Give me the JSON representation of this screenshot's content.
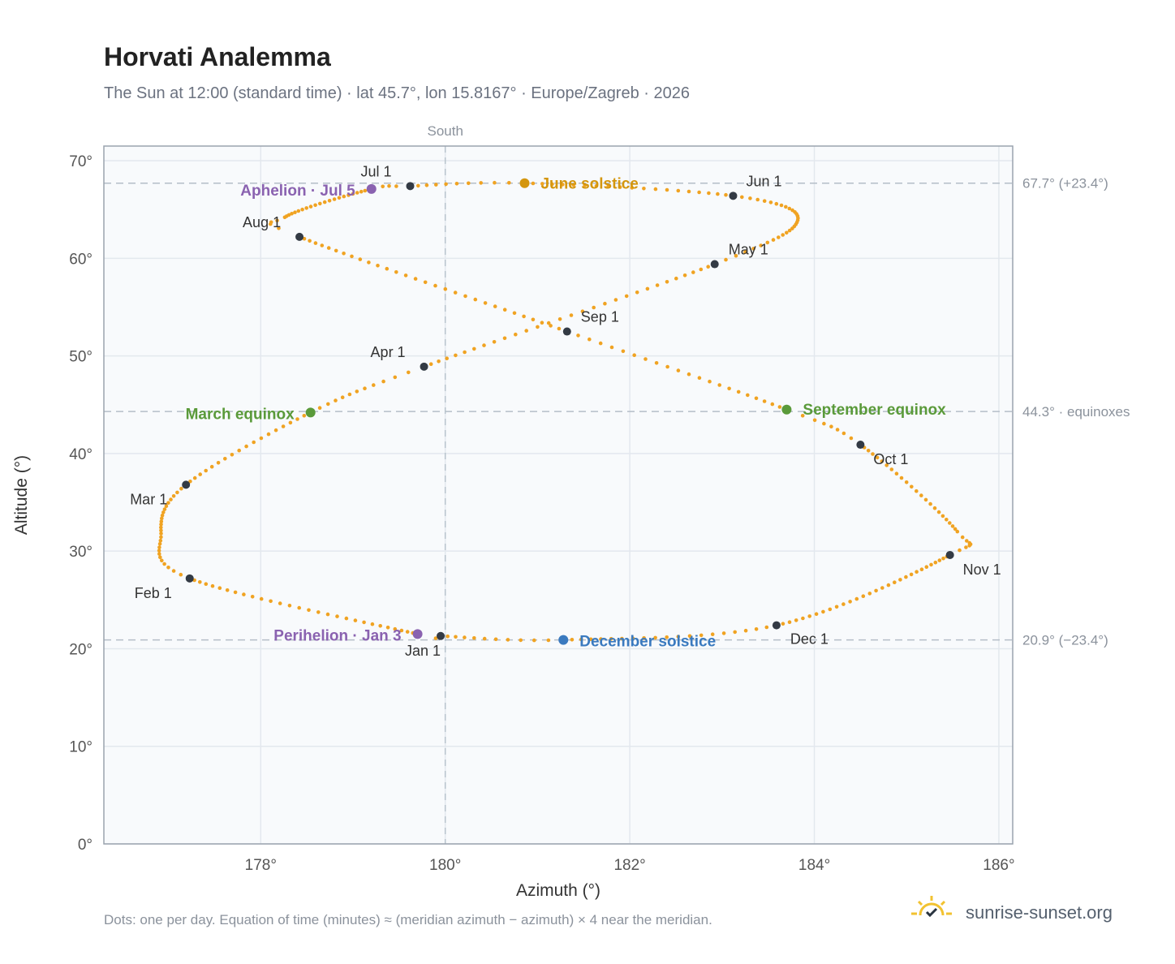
{
  "title": "Horvati Analemma",
  "subtitle": "The Sun at 12:00 (standard time) · lat 45.7°, lon 15.8167° · Europe/Zagreb · 2026",
  "footnote": "Dots: one per day. Equation of time (minutes) ≈ (meridian azimuth − azimuth) × 4 near the meridian.",
  "brand": {
    "text": "sunrise-sunset.org",
    "icon": "sun-logo-icon"
  },
  "colors": {
    "curve": "#f0a322",
    "month_marker": "#333a44",
    "solstice_june": "#d4960e",
    "solstice_december": "#3a7abf",
    "equinox": "#5a9a3a",
    "apsis": "#8a62b0",
    "grid": "#e3e8ee",
    "plot_bg": "#f8fafc",
    "reference_line": "#b5bec8"
  },
  "chart_data": {
    "type": "scatter",
    "title": "Horvati Analemma",
    "xlabel": "Azimuth (°)",
    "ylabel": "Altitude (°)",
    "xlim": [
      176.3,
      186.15
    ],
    "ylim": [
      0,
      71.5
    ],
    "x_ticks": [
      178,
      180,
      182,
      184,
      186
    ],
    "y_ticks": [
      0,
      10,
      20,
      30,
      40,
      50,
      60,
      70
    ],
    "x_tick_labels": [
      "178°",
      "180°",
      "182°",
      "184°",
      "186°"
    ],
    "y_tick_labels": [
      "0°",
      "10°",
      "20°",
      "30°",
      "40°",
      "50°",
      "60°",
      "70°"
    ],
    "grid": true,
    "south_line": {
      "x": 180,
      "label": "South"
    },
    "reference_lines": [
      {
        "y": 67.7,
        "label": "67.7° (+23.4°)"
      },
      {
        "y": 44.3,
        "label": "44.3° · equinoxes"
      },
      {
        "y": 20.9,
        "label": "20.9° (−23.4°)"
      }
    ],
    "month_points": [
      {
        "label": "Jan 1",
        "azimuth": 179.95,
        "altitude": 21.3
      },
      {
        "label": "Feb 1",
        "azimuth": 177.23,
        "altitude": 27.2
      },
      {
        "label": "Mar 1",
        "azimuth": 177.19,
        "altitude": 36.8
      },
      {
        "label": "Apr 1",
        "azimuth": 179.77,
        "altitude": 48.9
      },
      {
        "label": "May 1",
        "azimuth": 182.92,
        "altitude": 59.4
      },
      {
        "label": "Jun 1",
        "azimuth": 183.12,
        "altitude": 66.4
      },
      {
        "label": "Jul 1",
        "azimuth": 179.62,
        "altitude": 67.4
      },
      {
        "label": "Aug 1",
        "azimuth": 178.42,
        "altitude": 62.2
      },
      {
        "label": "Sep 1",
        "azimuth": 181.32,
        "altitude": 52.5
      },
      {
        "label": "Oct 1",
        "azimuth": 184.5,
        "altitude": 40.9
      },
      {
        "label": "Nov 1",
        "azimuth": 185.47,
        "altitude": 29.6
      },
      {
        "label": "Dec 1",
        "azimuth": 183.59,
        "altitude": 22.4
      }
    ],
    "events": [
      {
        "label": "June solstice",
        "kind": "solstice_june",
        "azimuth": 180.86,
        "altitude": 67.7
      },
      {
        "label": "December solstice",
        "kind": "solstice_december",
        "azimuth": 181.28,
        "altitude": 20.9
      },
      {
        "label": "March equinox",
        "kind": "equinox",
        "azimuth": 178.54,
        "altitude": 44.2
      },
      {
        "label": "September equinox",
        "kind": "equinox",
        "azimuth": 183.7,
        "altitude": 44.5
      },
      {
        "label": "Aphelion · Jul 5",
        "kind": "apsis",
        "azimuth": 179.2,
        "altitude": 67.1
      },
      {
        "label": "Perihelion · Jan 3",
        "kind": "apsis",
        "azimuth": 179.7,
        "altitude": 21.5
      }
    ],
    "analemma_model": {
      "description_of_series": "one dot per day",
      "daily_points": 365
    }
  }
}
